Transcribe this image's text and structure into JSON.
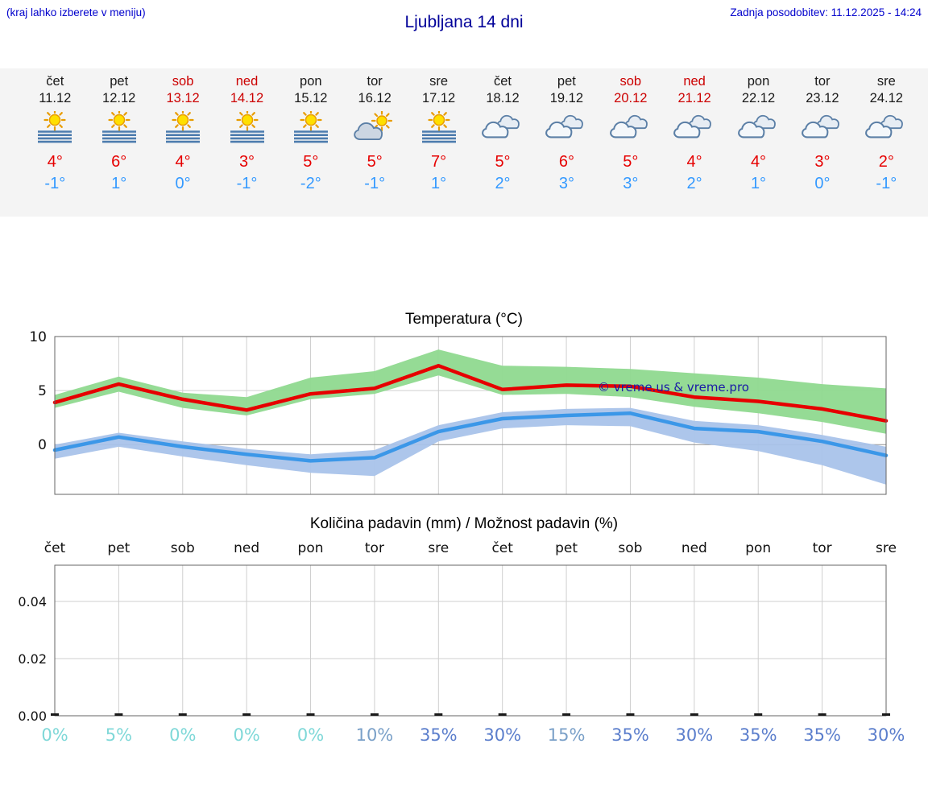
{
  "header": {
    "hint": "(kraj lahko izberete v meniju)",
    "title": "Ljubljana 14 dni",
    "updated": "Zadnja posodobitev: 11.12.2025 - 14:24"
  },
  "forecast": {
    "days": [
      {
        "day": "čet",
        "date": "11.12",
        "weekend": false,
        "icon": "sun-fog",
        "high": "4°",
        "low": "-1°"
      },
      {
        "day": "pet",
        "date": "12.12",
        "weekend": false,
        "icon": "sun-fog",
        "high": "6°",
        "low": "1°"
      },
      {
        "day": "sob",
        "date": "13.12",
        "weekend": true,
        "icon": "sun-fog",
        "high": "4°",
        "low": "0°"
      },
      {
        "day": "ned",
        "date": "14.12",
        "weekend": true,
        "icon": "sun-fog",
        "high": "3°",
        "low": "-1°"
      },
      {
        "day": "pon",
        "date": "15.12",
        "weekend": false,
        "icon": "sun-fog",
        "high": "5°",
        "low": "-2°"
      },
      {
        "day": "tor",
        "date": "16.12",
        "weekend": false,
        "icon": "partly-cloudy",
        "high": "5°",
        "low": "-1°"
      },
      {
        "day": "sre",
        "date": "17.12",
        "weekend": false,
        "icon": "sun-fog",
        "high": "7°",
        "low": "1°"
      },
      {
        "day": "čet",
        "date": "18.12",
        "weekend": false,
        "icon": "cloudy",
        "high": "5°",
        "low": "2°"
      },
      {
        "day": "pet",
        "date": "19.12",
        "weekend": false,
        "icon": "cloudy",
        "high": "6°",
        "low": "3°"
      },
      {
        "day": "sob",
        "date": "20.12",
        "weekend": true,
        "icon": "cloudy",
        "high": "5°",
        "low": "3°"
      },
      {
        "day": "ned",
        "date": "21.12",
        "weekend": true,
        "icon": "cloudy",
        "high": "4°",
        "low": "2°"
      },
      {
        "day": "pon",
        "date": "22.12",
        "weekend": false,
        "icon": "cloudy",
        "high": "4°",
        "low": "1°"
      },
      {
        "day": "tor",
        "date": "23.12",
        "weekend": false,
        "icon": "cloudy",
        "high": "3°",
        "low": "0°"
      },
      {
        "day": "sre",
        "date": "24.12",
        "weekend": false,
        "icon": "cloudy",
        "high": "2°",
        "low": "-1°"
      }
    ]
  },
  "chart_data": [
    {
      "type": "line",
      "title": "Temperatura (°C)",
      "xlabel": "",
      "ylabel": "",
      "categories": [
        "čet",
        "pet",
        "sob",
        "ned",
        "pon",
        "tor",
        "sre",
        "čet",
        "pet",
        "sob",
        "ned",
        "pon",
        "tor",
        "sre"
      ],
      "ylim": [
        -4.6,
        10
      ],
      "yticks": [
        0,
        5,
        10
      ],
      "grid": true,
      "series": [
        {
          "name": "max-temp",
          "color": "#e60000",
          "values": [
            3.9,
            5.6,
            4.2,
            3.2,
            4.7,
            5.2,
            7.3,
            5.1,
            5.5,
            5.4,
            4.4,
            4.0,
            3.3,
            2.2
          ]
        },
        {
          "name": "min-temp",
          "color": "#3b97e8",
          "values": [
            -0.5,
            0.7,
            -0.2,
            -0.9,
            -1.5,
            -1.2,
            1.2,
            2.4,
            2.7,
            2.9,
            1.5,
            1.2,
            0.3,
            -1.0
          ]
        }
      ],
      "bands": [
        {
          "name": "max-temp-range",
          "color": "#8fd98f",
          "upper": [
            4.6,
            6.3,
            4.8,
            4.4,
            6.2,
            6.8,
            8.8,
            7.3,
            7.2,
            7.0,
            6.6,
            6.2,
            5.6,
            5.2
          ],
          "lower": [
            3.4,
            4.9,
            3.4,
            2.7,
            4.2,
            4.7,
            6.4,
            4.6,
            4.7,
            4.4,
            3.5,
            2.9,
            2.1,
            1.0
          ]
        },
        {
          "name": "min-temp-range",
          "color": "#a9c3ea",
          "upper": [
            0.0,
            1.1,
            0.3,
            -0.4,
            -0.9,
            -0.5,
            1.8,
            3.0,
            3.3,
            3.4,
            2.2,
            1.8,
            0.9,
            -0.2
          ],
          "lower": [
            -1.3,
            -0.2,
            -1.1,
            -1.9,
            -2.6,
            -2.9,
            0.3,
            1.5,
            1.8,
            1.7,
            0.2,
            -0.6,
            -1.9,
            -3.7
          ]
        }
      ],
      "watermark": "© vreme.us & vreme.pro"
    },
    {
      "type": "bar",
      "title": "Količina padavin (mm) / Možnost padavin (%)",
      "xlabel": "",
      "ylabel": "",
      "categories": [
        "čet",
        "pet",
        "sob",
        "ned",
        "pon",
        "tor",
        "sre",
        "čet",
        "pet",
        "sob",
        "ned",
        "pon",
        "tor",
        "sre"
      ],
      "ylim": [
        0,
        0.053
      ],
      "yticks": [
        0,
        0.02,
        0.04
      ],
      "ytick_labels": [
        "0.00",
        "0.02",
        "0.04"
      ],
      "values": [
        0,
        0,
        0,
        0,
        0,
        0,
        0,
        0,
        0,
        0,
        0,
        0,
        0,
        0
      ],
      "probabilities": [
        "0%",
        "5%",
        "0%",
        "0%",
        "0%",
        "10%",
        "35%",
        "30%",
        "15%",
        "35%",
        "30%",
        "35%",
        "35%",
        "30%"
      ],
      "prob_colors": [
        "#7fd8d8",
        "#7fd8d8",
        "#7fd8d8",
        "#7fd8d8",
        "#7fd8d8",
        "#7aa0c8",
        "#5b7ecc",
        "#5b7ecc",
        "#7aa0c8",
        "#5b7ecc",
        "#5b7ecc",
        "#5b7ecc",
        "#5b7ecc",
        "#5b7ecc"
      ]
    }
  ],
  "colors": {
    "link_blue": "#0000cc",
    "title_blue": "#000099",
    "weekend_red": "#cc0000",
    "day_black": "#1a1a1a",
    "high_red": "#e60000",
    "low_blue": "#3399ff",
    "strip_bg": "#f4f4f4",
    "grid": "#cfcfcf",
    "zero_line": "#8f8f8f",
    "box_border": "#666666",
    "watermark": "#1a1aa6"
  }
}
